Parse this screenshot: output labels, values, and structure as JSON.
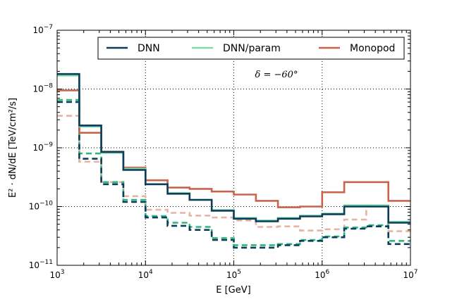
{
  "chart_data": {
    "type": "line",
    "xlabel": "E [GeV]",
    "ylabel": "E² · dN/dE [TeV/cm²/s]",
    "x_scale": "log",
    "y_scale": "log",
    "xlim": [
      1000,
      10000000
    ],
    "ylim": [
      1e-11,
      1e-07
    ],
    "x_tick_labels": [
      {
        "value": 1000,
        "base": "10",
        "exp": "3"
      },
      {
        "value": 10000,
        "base": "10",
        "exp": "4"
      },
      {
        "value": 100000,
        "base": "10",
        "exp": "5"
      },
      {
        "value": 1000000,
        "base": "10",
        "exp": "6"
      },
      {
        "value": 10000000,
        "base": "10",
        "exp": "7"
      }
    ],
    "y_tick_labels": [
      {
        "value": 1e-11,
        "base": "10",
        "exp": "−11"
      },
      {
        "value": 1e-10,
        "base": "10",
        "exp": "−10"
      },
      {
        "value": 1e-09,
        "base": "10",
        "exp": "−9"
      },
      {
        "value": 1e-08,
        "base": "10",
        "exp": "−8"
      },
      {
        "value": 1e-07,
        "base": "10",
        "exp": "−7"
      }
    ],
    "grid": true,
    "legend_position": "top",
    "annotation": "δ = −60°",
    "bin_edges": [
      1000,
      1780,
      3160,
      5620,
      10000,
      17800,
      31600,
      56200,
      100000,
      178000,
      316000,
      562000,
      1000000,
      1780000,
      3160000,
      5620000,
      10000000
    ],
    "series": [
      {
        "name": "DNN",
        "color": "#0b3d5c",
        "style": "solid",
        "values": [
          1.8e-08,
          2.4e-09,
          8.5e-10,
          4.2e-10,
          2.4e-10,
          1.65e-10,
          1.3e-10,
          8.5e-11,
          6.2e-11,
          5.6e-11,
          6.2e-11,
          6.8e-11,
          7.4e-11,
          1e-10,
          1e-10,
          5.3e-11
        ]
      },
      {
        "name": "DNN/param",
        "color": "#82d9a8",
        "style": "solid",
        "values": [
          1.7e-08,
          2.3e-09,
          8.2e-10,
          4.4e-10,
          2.4e-10,
          1.7e-10,
          1.3e-10,
          8.7e-11,
          6.4e-11,
          5.8e-11,
          6.4e-11,
          7e-11,
          7.6e-11,
          1.05e-10,
          1.05e-10,
          5.5e-11
        ]
      },
      {
        "name": "Monopod",
        "color": "#c9634b",
        "style": "solid",
        "values": [
          9.5e-09,
          1.8e-09,
          8.6e-10,
          4.6e-10,
          2.8e-10,
          2.1e-10,
          2e-10,
          1.8e-10,
          1.6e-10,
          1.25e-10,
          9.7e-11,
          1e-10,
          1.75e-10,
          2.6e-10,
          2.6e-10,
          1.25e-10
        ]
      },
      {
        "name": "",
        "color": "#0b3d5c",
        "style": "dashed",
        "values": [
          6e-09,
          6.5e-10,
          2.4e-10,
          1.2e-10,
          6.5e-11,
          4.7e-11,
          4e-11,
          2.7e-11,
          2e-11,
          2e-11,
          2.2e-11,
          2.6e-11,
          3e-11,
          4.2e-11,
          4.6e-11,
          2.3e-11
        ]
      },
      {
        "name": "",
        "color": "#2db87a",
        "style": "dashed",
        "values": [
          6.5e-09,
          8e-10,
          2.6e-10,
          1.3e-10,
          6.9e-11,
          5.3e-11,
          4.5e-11,
          2.9e-11,
          2.2e-11,
          2.2e-11,
          2.3e-11,
          2.7e-11,
          3.1e-11,
          4.4e-11,
          4.8e-11,
          2.6e-11
        ]
      },
      {
        "name": "",
        "color": "#e8b3a3",
        "style": "dashed",
        "values": [
          3.5e-09,
          5.8e-10,
          2.6e-10,
          1.5e-10,
          8.8e-11,
          7.8e-11,
          7e-11,
          6.5e-11,
          5.8e-11,
          4.5e-11,
          4.6e-11,
          3.9e-11,
          4.1e-11,
          6e-11,
          1e-10,
          3.8e-11
        ]
      }
    ]
  }
}
